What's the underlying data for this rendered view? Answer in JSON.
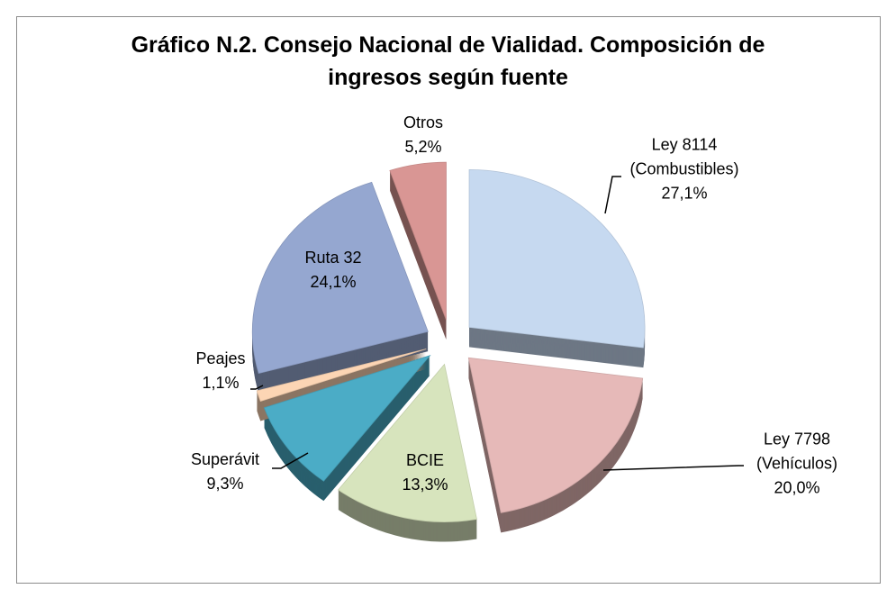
{
  "chart_data": {
    "type": "pie",
    "title": "Gráfico N.2. Consejo Nacional de Vialidad. Composición de ingresos según fuente",
    "categories": [
      "Ley 8114 (Combustibles)",
      "Ley 7798 (Vehículos)",
      "BCIE",
      "Superávit",
      "Peajes",
      "Ruta 32",
      "Otros"
    ],
    "values": [
      27.1,
      20.0,
      13.3,
      9.3,
      1.1,
      24.1,
      5.2
    ],
    "value_labels": [
      "27,1%",
      "20,0%",
      "13,3%",
      "9,3%",
      "1,1%",
      "24,1%",
      "5,2%"
    ],
    "colors": [
      "#c6d9f0",
      "#e6b9b8",
      "#d7e4bd",
      "#4bacc6",
      "#fcd5b4",
      "#95a7d0",
      "#d99694"
    ]
  }
}
